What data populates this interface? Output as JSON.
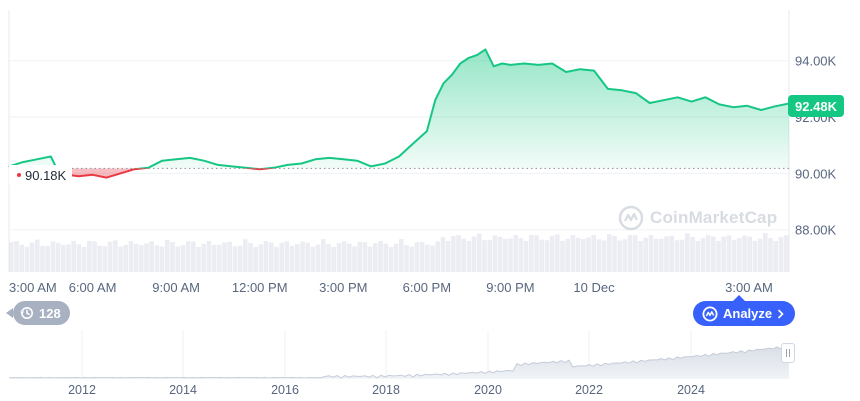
{
  "chart_data": {
    "type": "area",
    "x_ticks": [
      "3:00 AM",
      "6:00 AM",
      "9:00 AM",
      "12:00 PM",
      "3:00 PM",
      "6:00 PM",
      "9:00 PM",
      "10 Dec",
      "3:00 AM"
    ],
    "y_ticks": [
      "94.00K",
      "92.00K",
      "90.00K",
      "88.00K"
    ],
    "ylim": [
      86500,
      95800
    ],
    "baseline": 90180,
    "baseline_label": "90.18K",
    "current_price": 92480,
    "current_label": "92.48K",
    "x_hours": [
      0,
      0.5,
      1,
      1.5,
      1.8,
      2.1,
      2.5,
      3,
      3.5,
      4,
      4.5,
      5,
      5.5,
      6,
      6.5,
      7,
      7.5,
      8,
      8.5,
      9,
      9.5,
      10,
      10.5,
      11,
      11.5,
      12,
      12.5,
      13,
      13.5,
      14,
      14.5,
      15,
      15.3,
      15.6,
      15.9,
      16.2,
      16.5,
      16.8,
      17.1,
      17.4,
      17.7,
      18,
      18.5,
      19,
      19.5,
      20,
      20.5,
      21,
      21.5,
      22,
      22.5,
      23,
      23.5,
      24,
      24.5,
      25,
      25.5,
      26,
      26.5,
      27,
      27.5,
      28
    ],
    "series": [
      {
        "values": [
          90250,
          90400,
          90500,
          90600,
          90000,
          89950,
          89900,
          89950,
          89850,
          90000,
          90150,
          90200,
          90450,
          90500,
          90550,
          90450,
          90300,
          90250,
          90200,
          90150,
          90200,
          90300,
          90350,
          90500,
          90550,
          90500,
          90450,
          90250,
          90350,
          90600,
          91050,
          91500,
          92600,
          93200,
          93500,
          93900,
          94100,
          94200,
          94400,
          93800,
          93900,
          93850,
          93900,
          93850,
          93900,
          93600,
          93700,
          93650,
          93000,
          92950,
          92850,
          92500,
          92600,
          92700,
          92550,
          92700,
          92450,
          92350,
          92400,
          92250,
          92380,
          92480
        ]
      }
    ],
    "nav_x_ticks": [
      "2012",
      "2014",
      "2016",
      "2018",
      "2020",
      "2022",
      "2024"
    ]
  },
  "badges": {
    "baseline": "90.18K",
    "current": "92.48K"
  },
  "history_button": {
    "label": "128",
    "icon": "history-icon"
  },
  "analyze_button": {
    "label": "Analyze",
    "icon": "coinmarketcap-icon"
  },
  "logo": {
    "text": "CoinMarketCap"
  },
  "colors": {
    "up": "#16c784",
    "down": "#ea3943",
    "grid": "#eff2f5",
    "analyze": "#3861fb",
    "history": "#a7b1c2"
  }
}
